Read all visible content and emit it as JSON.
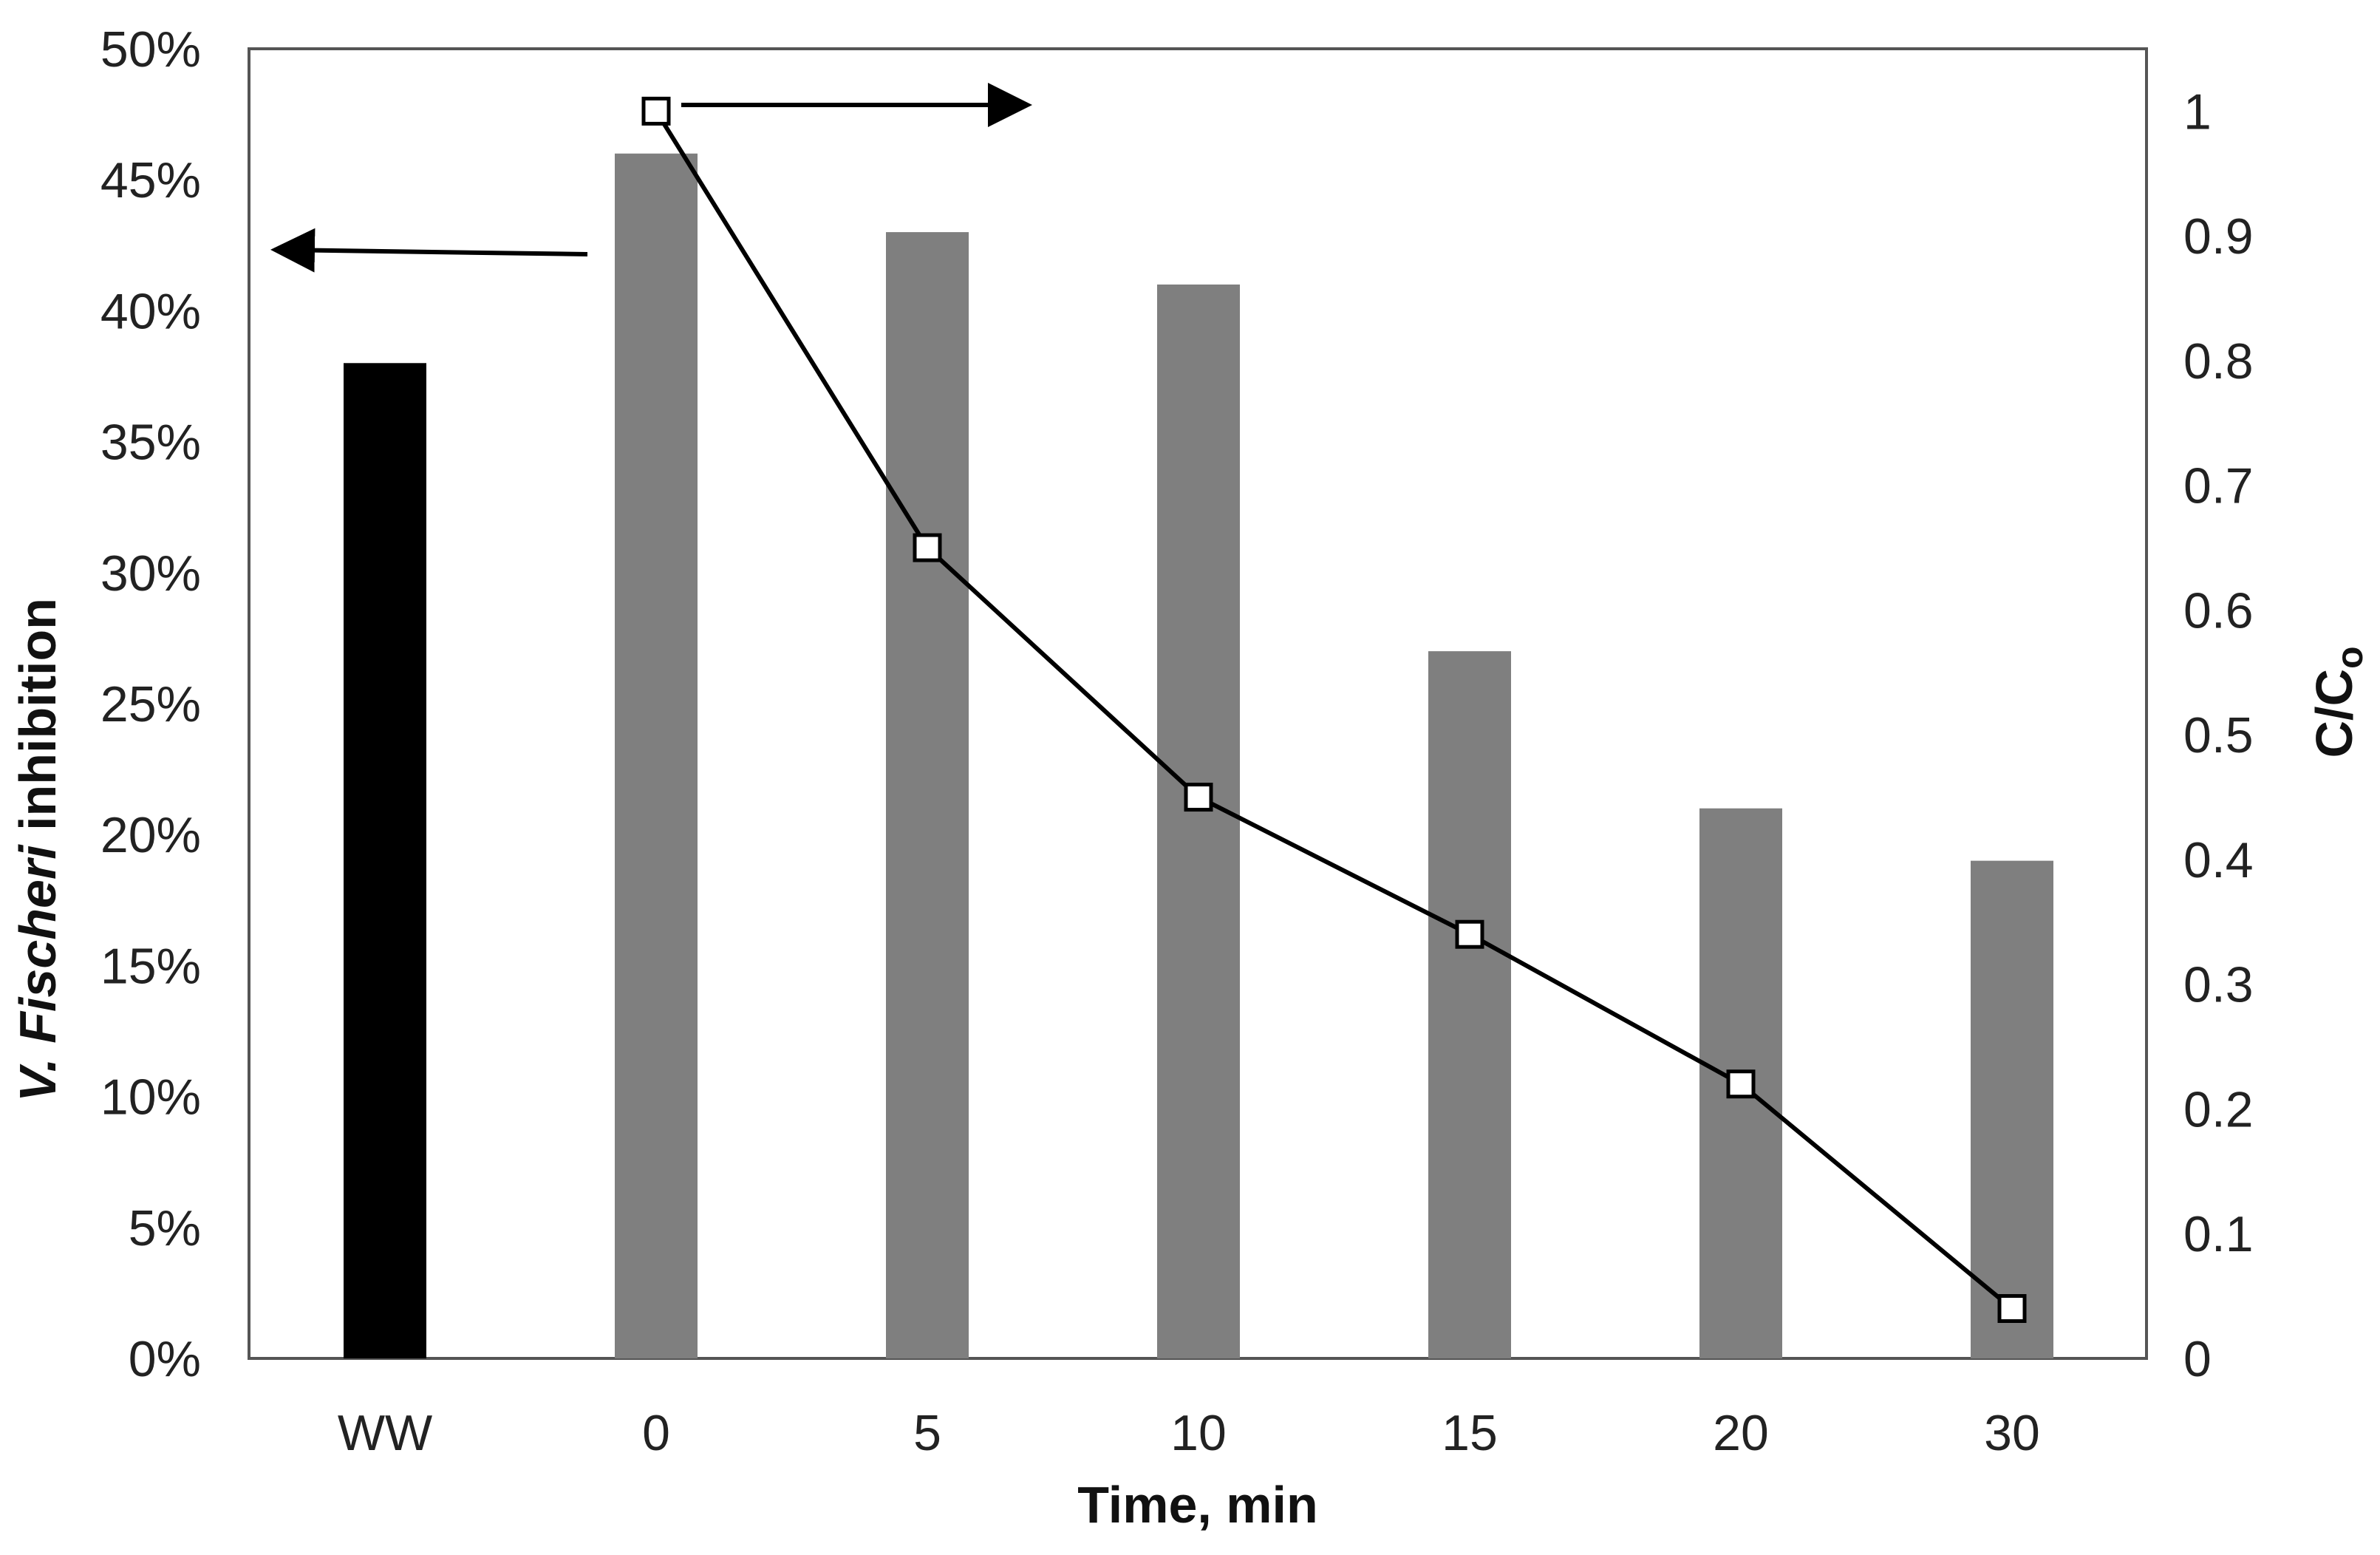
{
  "chart_data": {
    "type": "bar+line",
    "categories": [
      "WW",
      "0",
      "5",
      "10",
      "15",
      "20",
      "30"
    ],
    "series": [
      {
        "name": "V. Fischeri inhibition",
        "type": "bar",
        "axis": "left",
        "values": [
          38,
          46,
          43,
          41,
          27,
          21,
          19
        ],
        "colors": [
          "#000000",
          "#7f7f7f",
          "#7f7f7f",
          "#7f7f7f",
          "#7f7f7f",
          "#7f7f7f",
          "#7f7f7f"
        ]
      },
      {
        "name": "C/Co",
        "type": "line",
        "axis": "right",
        "values": [
          null,
          1.0,
          0.65,
          0.45,
          0.34,
          0.22,
          0.04
        ],
        "marker": "square-open",
        "color": "#000000"
      }
    ],
    "left_axis": {
      "range": [
        0,
        50
      ],
      "ticks": [
        "0%",
        "5%",
        "10%",
        "15%",
        "20%",
        "25%",
        "30%",
        "35%",
        "40%",
        "45%",
        "50%"
      ],
      "label_italic": "V. Fischeri",
      "label_rest": "inhibition"
    },
    "right_axis": {
      "range": [
        0,
        1.05
      ],
      "ticks": [
        "0",
        "0.1",
        "0.2",
        "0.3",
        "0.4",
        "0.5",
        "0.6",
        "0.7",
        "0.8",
        "0.9",
        "1"
      ],
      "label_main": "C/C",
      "label_sub": "o"
    },
    "xlabel": "Time, min",
    "annotations": [
      {
        "type": "arrow",
        "points_to": "left axis",
        "anchor": "near WW bar"
      },
      {
        "type": "arrow",
        "points_to": "right axis",
        "anchor": "at first C/Co point"
      }
    ],
    "grid": false
  }
}
